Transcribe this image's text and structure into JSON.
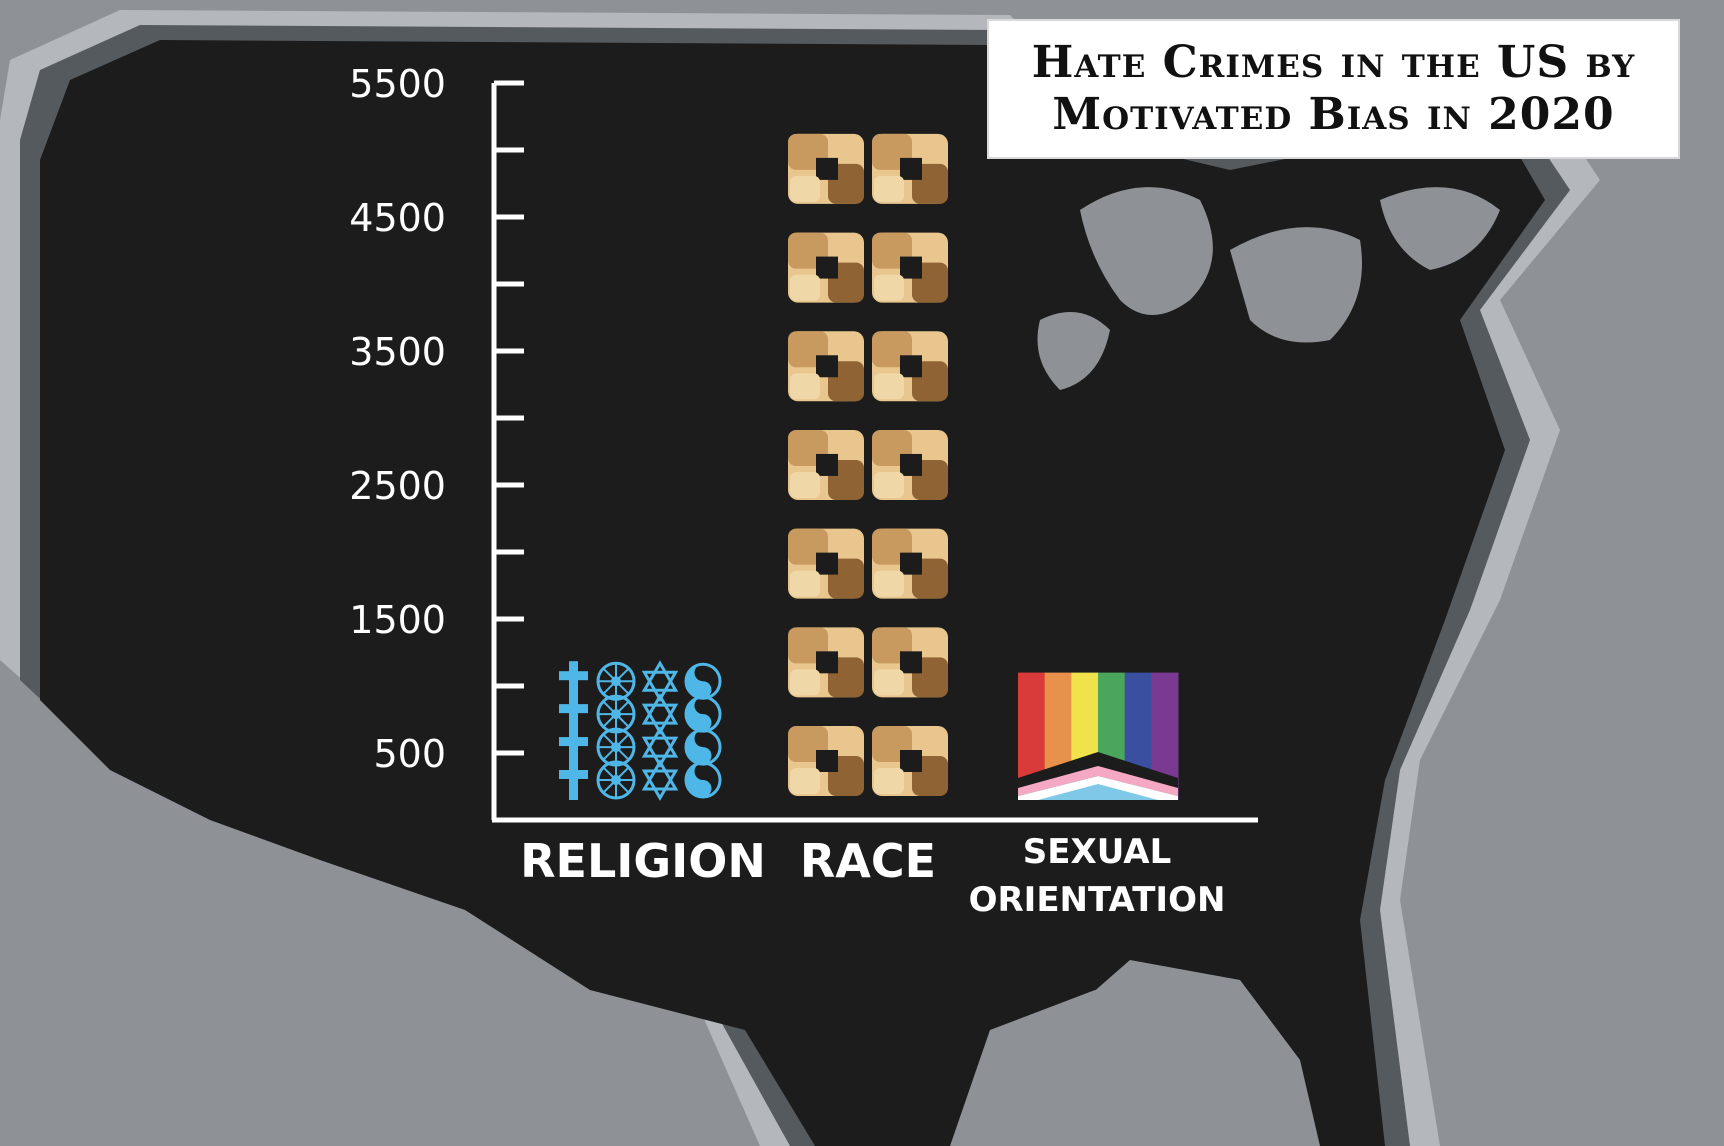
{
  "title": {
    "line1": "Hate Crimes in the US by",
    "line2": "Motivated Bias in 2020"
  },
  "chart_data": {
    "type": "bar",
    "style": "pictograph",
    "background": "map-of-us",
    "categories": [
      "RELIGION",
      "RACE",
      "SEXUAL ORIENTATION"
    ],
    "category_label_lines": [
      [
        "RELIGION"
      ],
      [
        "RACE"
      ],
      [
        "SEXUAL",
        "ORIENTATION"
      ]
    ],
    "values": [
      1200,
      5150,
      1100
    ],
    "bar_icons": [
      "religion-symbols-icon",
      "raised-fists-icon",
      "pride-flag-icon"
    ],
    "yticks": [
      500,
      1500,
      2500,
      3500,
      4500,
      5500
    ],
    "ylim": [
      0,
      5500
    ],
    "xlabel": "",
    "ylabel": "",
    "grid": false,
    "colors": {
      "map_land": "#1c1c1c",
      "map_background": "#8e9196",
      "axis": "#ffffff",
      "religion_icon": "#4fb7e8",
      "race_light": "#e8c68e",
      "race_mid": "#c99a60",
      "race_dark": "#8f6333",
      "pride": [
        "#d93a3a",
        "#e8914a",
        "#f0e24a",
        "#4aa65a",
        "#3a4fa0",
        "#7a3a92"
      ]
    }
  }
}
